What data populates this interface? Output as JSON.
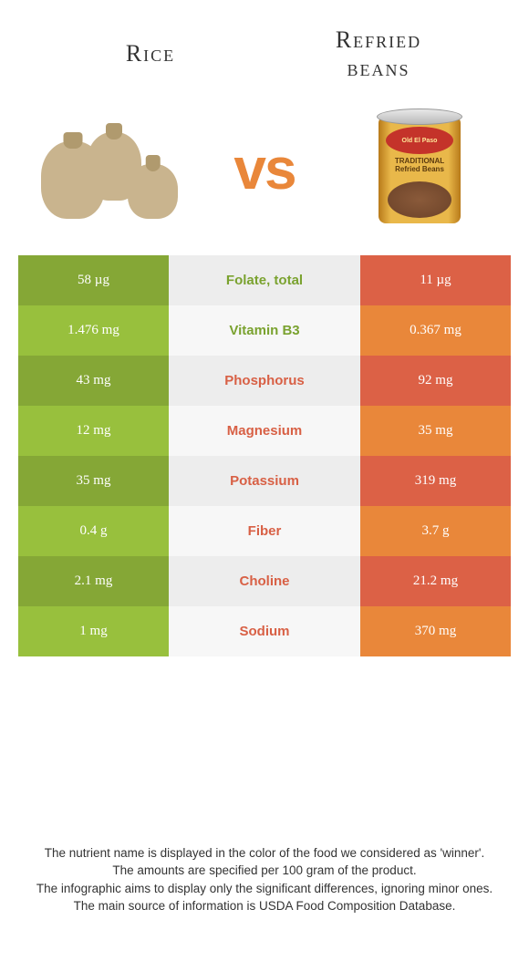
{
  "header": {
    "left_title": "Rice",
    "right_title_line1": "Refried",
    "right_title_line2": "beans",
    "vs": "vs"
  },
  "colors": {
    "green_dark": "#85a736",
    "green_light": "#98c03d",
    "red_dark": "#dc6146",
    "red_light": "#e9873a",
    "grey_dark": "#ededed",
    "grey_light": "#f7f7f7",
    "text_green": "#7aa22f",
    "text_red": "#d86045",
    "vs_color": "#e9873a"
  },
  "rows": [
    {
      "left": "58 µg",
      "label": "Folate, total",
      "right": "11 µg",
      "winner": "left"
    },
    {
      "left": "1.476 mg",
      "label": "Vitamin B3",
      "right": "0.367 mg",
      "winner": "left"
    },
    {
      "left": "43 mg",
      "label": "Phosphorus",
      "right": "92 mg",
      "winner": "right"
    },
    {
      "left": "12 mg",
      "label": "Magnesium",
      "right": "35 mg",
      "winner": "right"
    },
    {
      "left": "35 mg",
      "label": "Potassium",
      "right": "319 mg",
      "winner": "right"
    },
    {
      "left": "0.4 g",
      "label": "Fiber",
      "right": "3.7 g",
      "winner": "right"
    },
    {
      "left": "2.1 mg",
      "label": "Choline",
      "right": "21.2 mg",
      "winner": "right"
    },
    {
      "left": "1 mg",
      "label": "Sodium",
      "right": "370 mg",
      "winner": "right"
    }
  ],
  "footer": {
    "line1": "The nutrient name is displayed in the color of the food we considered as 'winner'.",
    "line2": "The amounts are specified per 100 gram of the product.",
    "line3": "The infographic aims to display only the significant differences, ignoring minor ones.",
    "line4": "The main source of information is USDA Food Composition Database."
  },
  "can_text": {
    "brand": "Old El Paso",
    "label": "TRADITIONAL Refried Beans"
  }
}
